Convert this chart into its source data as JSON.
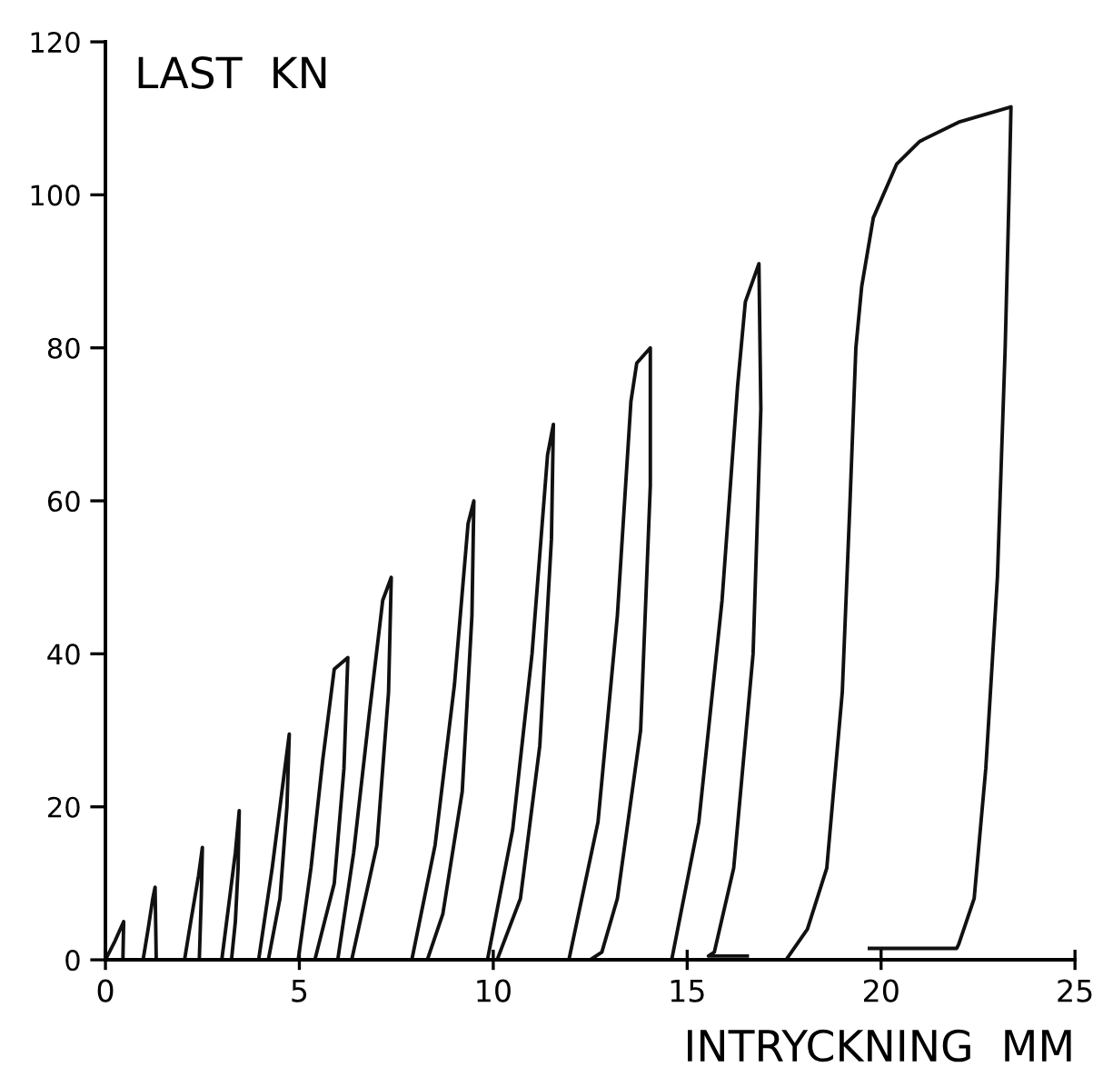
{
  "chart_data": {
    "type": "line",
    "xlabel": "INTRYCKNING  MM",
    "ylabel": "LAST  KN",
    "xlim": [
      0,
      25
    ],
    "ylim": [
      0,
      120
    ],
    "xticks": [
      0,
      5,
      10,
      15,
      20,
      25
    ],
    "yticks": [
      0,
      20,
      40,
      60,
      80,
      100,
      120
    ],
    "marker": "none",
    "line_style": "solid",
    "series": [
      {
        "color": "#111111",
        "x": [
          0,
          0.25,
          0.47,
          0.45
        ],
        "values": [
          0,
          2.5,
          5,
          0
        ]
      },
      {
        "color": "#111111",
        "x": [
          0.97,
          1.1,
          1.22,
          1.28,
          1.31
        ],
        "values": [
          0,
          4,
          8,
          9.5,
          0
        ]
      },
      {
        "color": "#111111",
        "x": [
          2.04,
          2.2,
          2.4,
          2.5,
          2.47,
          2.42
        ],
        "values": [
          0,
          5,
          11,
          14.7,
          8,
          0
        ]
      },
      {
        "color": "#111111",
        "x": [
          3.0,
          3.2,
          3.35,
          3.45,
          3.42,
          3.35,
          3.25
        ],
        "values": [
          0,
          8,
          14,
          19.5,
          12,
          5,
          0
        ]
      },
      {
        "color": "#111111",
        "x": [
          3.95,
          4.3,
          4.55,
          4.74,
          4.68,
          4.5,
          4.2
        ],
        "values": [
          0,
          12,
          22,
          29.5,
          20,
          8,
          0
        ]
      },
      {
        "color": "#111111",
        "x": [
          4.97,
          5.3,
          5.6,
          5.9,
          6.25,
          6.15,
          5.9,
          5.4
        ],
        "values": [
          0,
          12,
          26,
          38,
          39.5,
          25,
          10,
          0
        ]
      },
      {
        "color": "#111111",
        "x": [
          5.99,
          6.4,
          6.8,
          7.15,
          7.37,
          7.3,
          7.0,
          6.35
        ],
        "values": [
          0,
          14,
          32,
          47,
          50,
          35,
          15,
          0
        ]
      },
      {
        "color": "#111111",
        "x": [
          7.9,
          8.5,
          9.0,
          9.35,
          9.5,
          9.45,
          9.2,
          8.7,
          8.3
        ],
        "values": [
          0,
          15,
          36,
          57,
          60,
          45,
          22,
          6,
          0
        ]
      },
      {
        "color": "#111111",
        "x": [
          9.85,
          10.5,
          11.0,
          11.4,
          11.55,
          11.5,
          11.2,
          10.7,
          10.1
        ],
        "values": [
          0,
          17,
          40,
          66,
          70,
          55,
          28,
          8,
          0
        ]
      },
      {
        "color": "#111111",
        "x": [
          11.95,
          12.7,
          13.2,
          13.55,
          13.7,
          14.05,
          14.05,
          13.8,
          13.2,
          12.8,
          12.5
        ],
        "values": [
          0,
          18,
          45,
          73,
          78,
          80,
          62,
          30,
          8,
          1,
          0
        ]
      },
      {
        "color": "#111111",
        "x": [
          14.6,
          15.3,
          15.9,
          16.3,
          16.5,
          16.85,
          16.9,
          16.7,
          16.2,
          15.7,
          15.55,
          16.55
        ],
        "values": [
          0,
          18,
          47,
          75,
          86,
          91,
          72,
          40,
          12,
          1,
          0.5,
          0.5
        ]
      },
      {
        "color": "#111111",
        "x": [
          17.55,
          18.1,
          18.6,
          19.0,
          19.2,
          19.35,
          19.5,
          19.8,
          20.4,
          21.0,
          22.0,
          23.35,
          23.3,
          23.2,
          23.0,
          22.7,
          22.4,
          22.0,
          21.95,
          19.7
        ],
        "values": [
          0,
          4,
          12,
          35,
          60,
          80,
          88,
          97,
          104,
          107,
          109.5,
          111.5,
          100,
          80,
          50,
          25,
          8,
          2,
          1.5,
          1.5
        ]
      }
    ]
  }
}
